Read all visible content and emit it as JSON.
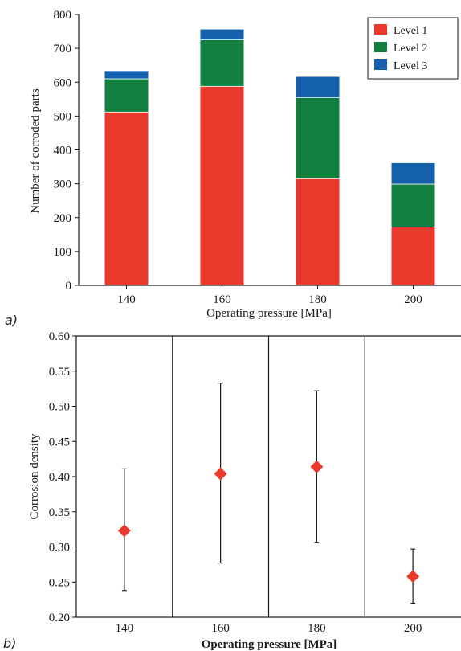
{
  "chart_data": [
    {
      "type": "bar",
      "stacked": true,
      "panel_label": "a)",
      "categories": [
        "140",
        "160",
        "180",
        "200"
      ],
      "series": [
        {
          "name": "Level 1",
          "color": "#e8392c",
          "values": [
            512,
            588,
            315,
            172
          ]
        },
        {
          "name": "Level 2",
          "color": "#11803f",
          "values": [
            98,
            137,
            239,
            127
          ]
        },
        {
          "name": "Level 3",
          "color": "#1560ad",
          "values": [
            23,
            31,
            62,
            62
          ]
        }
      ],
      "xlabel": "Operating pressure [MPa]",
      "ylabel": "Number of corroded parts",
      "ylim": [
        0,
        800
      ],
      "yticks": [
        "0",
        "100",
        "200",
        "300",
        "400",
        "500",
        "600",
        "700",
        "800"
      ],
      "legend_position": "top-right",
      "grid": false
    },
    {
      "type": "scatter",
      "error_bars": true,
      "panel_label": "b)",
      "categories": [
        "140",
        "160",
        "180",
        "200"
      ],
      "marker": "diamond",
      "marker_color": "#e8392c",
      "series": [
        {
          "values": [
            0.323,
            0.404,
            0.414,
            0.258
          ],
          "lower": [
            0.238,
            0.277,
            0.306,
            0.22
          ],
          "upper": [
            0.411,
            0.533,
            0.522,
            0.297
          ]
        }
      ],
      "xlabel": "Operating pressure [MPa]",
      "ylabel": "Corrosion density",
      "ylim": [
        0.2,
        0.6
      ],
      "yticks": [
        "0.20",
        "0.25",
        "0.30",
        "0.35",
        "0.40",
        "0.45",
        "0.50",
        "0.55",
        "0.60"
      ],
      "grid": false,
      "category_separators": true
    }
  ]
}
